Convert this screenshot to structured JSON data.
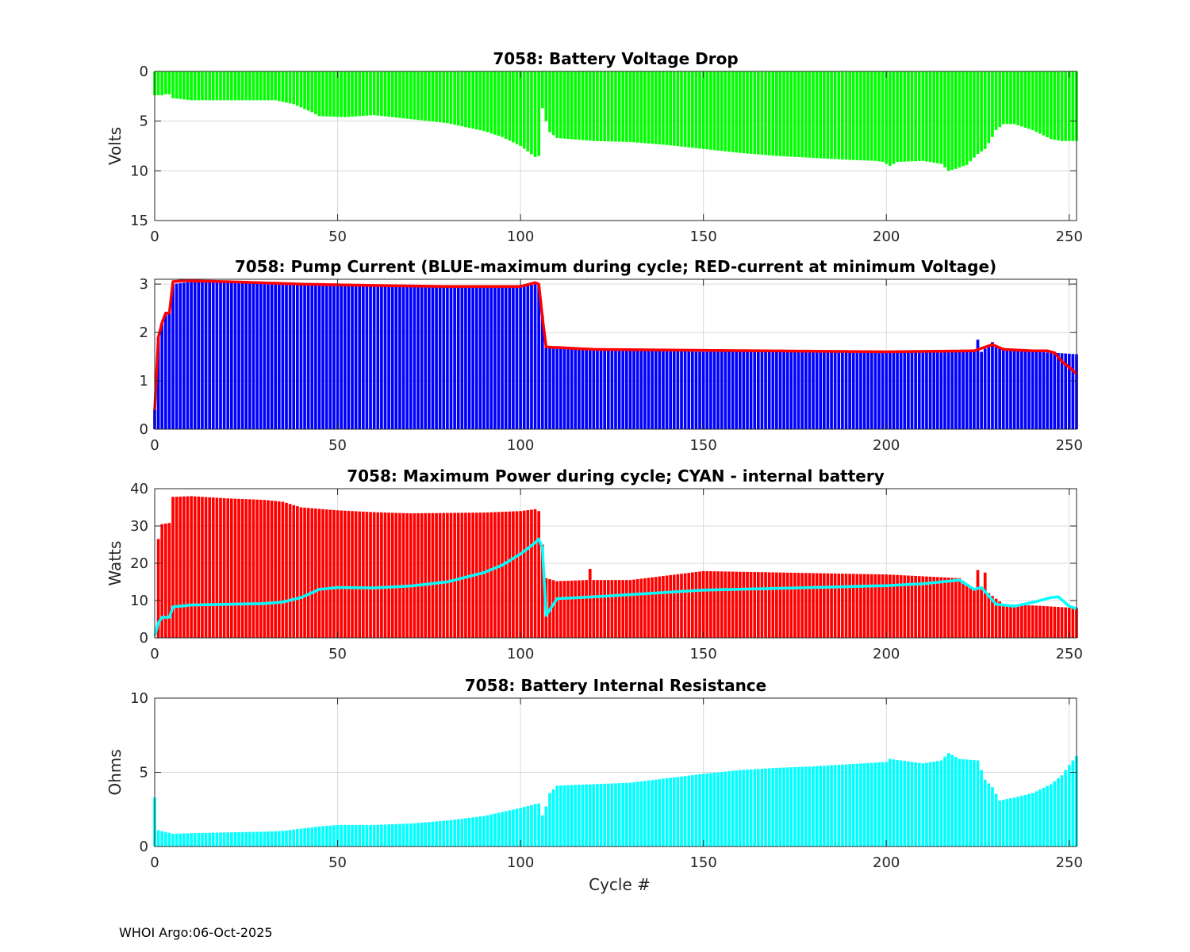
{
  "footer": "WHOI Argo:06-Oct-2025",
  "colors": {
    "green": "#00ff00",
    "blue": "#0000ff",
    "red": "#ff0000",
    "cyan": "#00ffff",
    "grid": "#d9d9d9"
  },
  "chart_data": [
    {
      "id": "voltage",
      "type": "bar",
      "title": "7058: Battery Voltage Drop",
      "xlabel": "",
      "ylabel": "Volts",
      "xlim": [
        0,
        252
      ],
      "ylim": [
        0,
        15
      ],
      "y_reversed": true,
      "xticks": [
        0,
        50,
        100,
        150,
        200,
        250
      ],
      "yticks": [
        0,
        5,
        10,
        15
      ],
      "grid": true,
      "bar_color": "#00ff00",
      "series": [
        {
          "name": "voltage drop",
          "knots": [
            [
              0,
              2.4
            ],
            [
              2,
              2.4
            ],
            [
              3,
              2.3
            ],
            [
              4,
              2.3
            ],
            [
              5,
              2.7
            ],
            [
              10,
              2.9
            ],
            [
              20,
              2.9
            ],
            [
              33,
              2.9
            ],
            [
              38,
              3.3
            ],
            [
              43,
              4.1
            ],
            [
              45,
              4.5
            ],
            [
              52,
              4.6
            ],
            [
              60,
              4.4
            ],
            [
              70,
              4.8
            ],
            [
              80,
              5.2
            ],
            [
              90,
              6.0
            ],
            [
              95,
              6.6
            ],
            [
              100,
              7.5
            ],
            [
              104,
              8.6
            ],
            [
              105,
              8.5
            ],
            [
              106,
              3.7
            ],
            [
              107,
              5.0
            ],
            [
              108,
              6.1
            ],
            [
              110,
              6.7
            ],
            [
              120,
              7.0
            ],
            [
              130,
              7.1
            ],
            [
              140,
              7.4
            ],
            [
              150,
              7.8
            ],
            [
              160,
              8.2
            ],
            [
              170,
              8.5
            ],
            [
              180,
              8.7
            ],
            [
              190,
              8.9
            ],
            [
              197,
              9.0
            ],
            [
              199,
              9.1
            ],
            [
              201,
              9.5
            ],
            [
              203,
              9.1
            ],
            [
              210,
              9.0
            ],
            [
              215,
              9.3
            ],
            [
              217,
              10.0
            ],
            [
              219,
              9.8
            ],
            [
              222,
              9.4
            ],
            [
              225,
              8.3
            ],
            [
              227,
              7.8
            ],
            [
              229,
              6.6
            ],
            [
              230,
              5.9
            ],
            [
              232,
              5.3
            ],
            [
              235,
              5.3
            ],
            [
              240,
              5.9
            ],
            [
              245,
              6.8
            ],
            [
              248,
              7.0
            ],
            [
              252,
              7.0
            ]
          ]
        }
      ]
    },
    {
      "id": "current",
      "type": "bar",
      "title": "7058: Pump Current (BLUE-maximum during cycle; RED-current at minimum Voltage)",
      "xlabel": "",
      "ylabel": "",
      "xlim": [
        0,
        252
      ],
      "ylim": [
        0,
        3.1
      ],
      "xticks": [
        0,
        50,
        100,
        150,
        200,
        250
      ],
      "yticks": [
        0,
        1,
        2,
        3
      ],
      "grid": true,
      "bar_color": "#0000ff",
      "line_color": "#ff0000",
      "series": [
        {
          "name": "maximum during cycle",
          "knots": [
            [
              0,
              0.4
            ],
            [
              1,
              1.9
            ],
            [
              2,
              2.2
            ],
            [
              3,
              2.4
            ],
            [
              4,
              2.4
            ],
            [
              5,
              3.0
            ],
            [
              10,
              3.05
            ],
            [
              20,
              3.05
            ],
            [
              40,
              3.0
            ],
            [
              60,
              2.97
            ],
            [
              80,
              2.95
            ],
            [
              100,
              2.95
            ],
            [
              104,
              3.0
            ],
            [
              105,
              3.0
            ],
            [
              107,
              1.7
            ],
            [
              120,
              1.65
            ],
            [
              150,
              1.6
            ],
            [
              200,
              1.6
            ],
            [
              224,
              1.6
            ],
            [
              225,
              1.85
            ],
            [
              226,
              1.6
            ],
            [
              229,
              1.8
            ],
            [
              230,
              1.7
            ],
            [
              240,
              1.6
            ],
            [
              246,
              1.58
            ],
            [
              252,
              1.55
            ]
          ]
        },
        {
          "name": "current at minimum Voltage",
          "knots": [
            [
              0,
              0.4
            ],
            [
              1,
              1.9
            ],
            [
              2,
              2.2
            ],
            [
              3,
              2.4
            ],
            [
              4,
              2.4
            ],
            [
              5,
              3.05
            ],
            [
              8,
              3.07
            ],
            [
              20,
              3.05
            ],
            [
              40,
              3.0
            ],
            [
              60,
              2.97
            ],
            [
              80,
              2.95
            ],
            [
              100,
              2.95
            ],
            [
              104,
              3.03
            ],
            [
              105,
              3.0
            ],
            [
              106,
              2.3
            ],
            [
              107,
              1.7
            ],
            [
              120,
              1.65
            ],
            [
              150,
              1.63
            ],
            [
              200,
              1.6
            ],
            [
              224,
              1.62
            ],
            [
              229,
              1.75
            ],
            [
              232,
              1.65
            ],
            [
              240,
              1.62
            ],
            [
              244,
              1.62
            ],
            [
              246,
              1.58
            ],
            [
              248,
              1.4
            ],
            [
              250,
              1.28
            ],
            [
              252,
              1.15
            ]
          ]
        }
      ]
    },
    {
      "id": "power",
      "type": "bar",
      "title": "7058: Maximum Power during cycle; CYAN - internal battery",
      "xlabel": "",
      "ylabel": "Watts",
      "xlim": [
        0,
        252
      ],
      "ylim": [
        0,
        40
      ],
      "xticks": [
        0,
        50,
        100,
        150,
        200,
        250
      ],
      "yticks": [
        0,
        10,
        20,
        30,
        40
      ],
      "grid": true,
      "bar_color": "#ff0000",
      "line_color": "#00ffff",
      "series": [
        {
          "name": "maximum power",
          "knots": [
            [
              0,
              0
            ],
            [
              1,
              26.5
            ],
            [
              2,
              30.5
            ],
            [
              4,
              30.8
            ],
            [
              5,
              37.8
            ],
            [
              10,
              38.0
            ],
            [
              20,
              37.4
            ],
            [
              30,
              37.0
            ],
            [
              35,
              36.5
            ],
            [
              40,
              35.0
            ],
            [
              50,
              34.2
            ],
            [
              60,
              33.7
            ],
            [
              70,
              33.4
            ],
            [
              80,
              33.5
            ],
            [
              90,
              33.6
            ],
            [
              100,
              34.0
            ],
            [
              104,
              34.5
            ],
            [
              105,
              34.0
            ],
            [
              107,
              16.0
            ],
            [
              110,
              15.2
            ],
            [
              118,
              15.5
            ],
            [
              119,
              18.5
            ],
            [
              120,
              15.5
            ],
            [
              130,
              15.5
            ],
            [
              150,
              17.9
            ],
            [
              200,
              17.0
            ],
            [
              220,
              16.0
            ],
            [
              224,
              13.0
            ],
            [
              225,
              18.2
            ],
            [
              226,
              13.0
            ],
            [
              227,
              17.5
            ],
            [
              228,
              12.0
            ],
            [
              232,
              9.0
            ],
            [
              240,
              8.7
            ],
            [
              252,
              8.0
            ]
          ]
        },
        {
          "name": "internal battery",
          "knots": [
            [
              0,
              0.5
            ],
            [
              1,
              4.0
            ],
            [
              2,
              5.5
            ],
            [
              4,
              5.5
            ],
            [
              5,
              8.3
            ],
            [
              10,
              8.8
            ],
            [
              20,
              9.0
            ],
            [
              30,
              9.2
            ],
            [
              35,
              9.6
            ],
            [
              40,
              10.8
            ],
            [
              45,
              13.0
            ],
            [
              50,
              13.5
            ],
            [
              60,
              13.4
            ],
            [
              70,
              13.9
            ],
            [
              80,
              15.0
            ],
            [
              90,
              17.5
            ],
            [
              95,
              19.5
            ],
            [
              100,
              22.5
            ],
            [
              104,
              25.5
            ],
            [
              105,
              26.5
            ],
            [
              106,
              24.0
            ],
            [
              107,
              6.0
            ],
            [
              110,
              10.5
            ],
            [
              120,
              11.0
            ],
            [
              150,
              12.8
            ],
            [
              180,
              13.5
            ],
            [
              200,
              14.0
            ],
            [
              210,
              14.5
            ],
            [
              220,
              15.5
            ],
            [
              224,
              13.0
            ],
            [
              226,
              13.5
            ],
            [
              230,
              9.0
            ],
            [
              235,
              8.5
            ],
            [
              240,
              9.5
            ],
            [
              245,
              10.8
            ],
            [
              247,
              11.0
            ],
            [
              250,
              8.5
            ],
            [
              252,
              7.8
            ]
          ]
        }
      ]
    },
    {
      "id": "resistance",
      "type": "bar",
      "title": "7058: Battery Internal Resistance",
      "xlabel": "Cycle #",
      "ylabel": "Ohms",
      "xlim": [
        0,
        252
      ],
      "ylim": [
        0,
        10
      ],
      "xticks": [
        0,
        50,
        100,
        150,
        200,
        250
      ],
      "yticks": [
        0,
        5,
        10
      ],
      "grid": true,
      "bar_color": "#00ffff",
      "series": [
        {
          "name": "internal resistance",
          "knots": [
            [
              0,
              3.3
            ],
            [
              1,
              1.1
            ],
            [
              5,
              0.85
            ],
            [
              10,
              0.9
            ],
            [
              20,
              0.95
            ],
            [
              30,
              1.0
            ],
            [
              35,
              1.05
            ],
            [
              40,
              1.2
            ],
            [
              45,
              1.35
            ],
            [
              50,
              1.45
            ],
            [
              60,
              1.45
            ],
            [
              70,
              1.55
            ],
            [
              80,
              1.75
            ],
            [
              90,
              2.05
            ],
            [
              100,
              2.6
            ],
            [
              104,
              2.85
            ],
            [
              105,
              2.9
            ],
            [
              106,
              2.1
            ],
            [
              107,
              2.7
            ],
            [
              108,
              3.6
            ],
            [
              110,
              4.1
            ],
            [
              120,
              4.2
            ],
            [
              130,
              4.3
            ],
            [
              140,
              4.6
            ],
            [
              150,
              4.9
            ],
            [
              160,
              5.15
            ],
            [
              170,
              5.3
            ],
            [
              180,
              5.4
            ],
            [
              190,
              5.55
            ],
            [
              200,
              5.7
            ],
            [
              201,
              5.9
            ],
            [
              210,
              5.6
            ],
            [
              215,
              5.8
            ],
            [
              217,
              6.3
            ],
            [
              220,
              5.9
            ],
            [
              225,
              5.8
            ],
            [
              227,
              4.5
            ],
            [
              229,
              4.0
            ],
            [
              231,
              3.1
            ],
            [
              235,
              3.3
            ],
            [
              240,
              3.6
            ],
            [
              245,
              4.2
            ],
            [
              248,
              4.8
            ],
            [
              250,
              5.5
            ],
            [
              252,
              6.1
            ]
          ]
        }
      ]
    }
  ]
}
